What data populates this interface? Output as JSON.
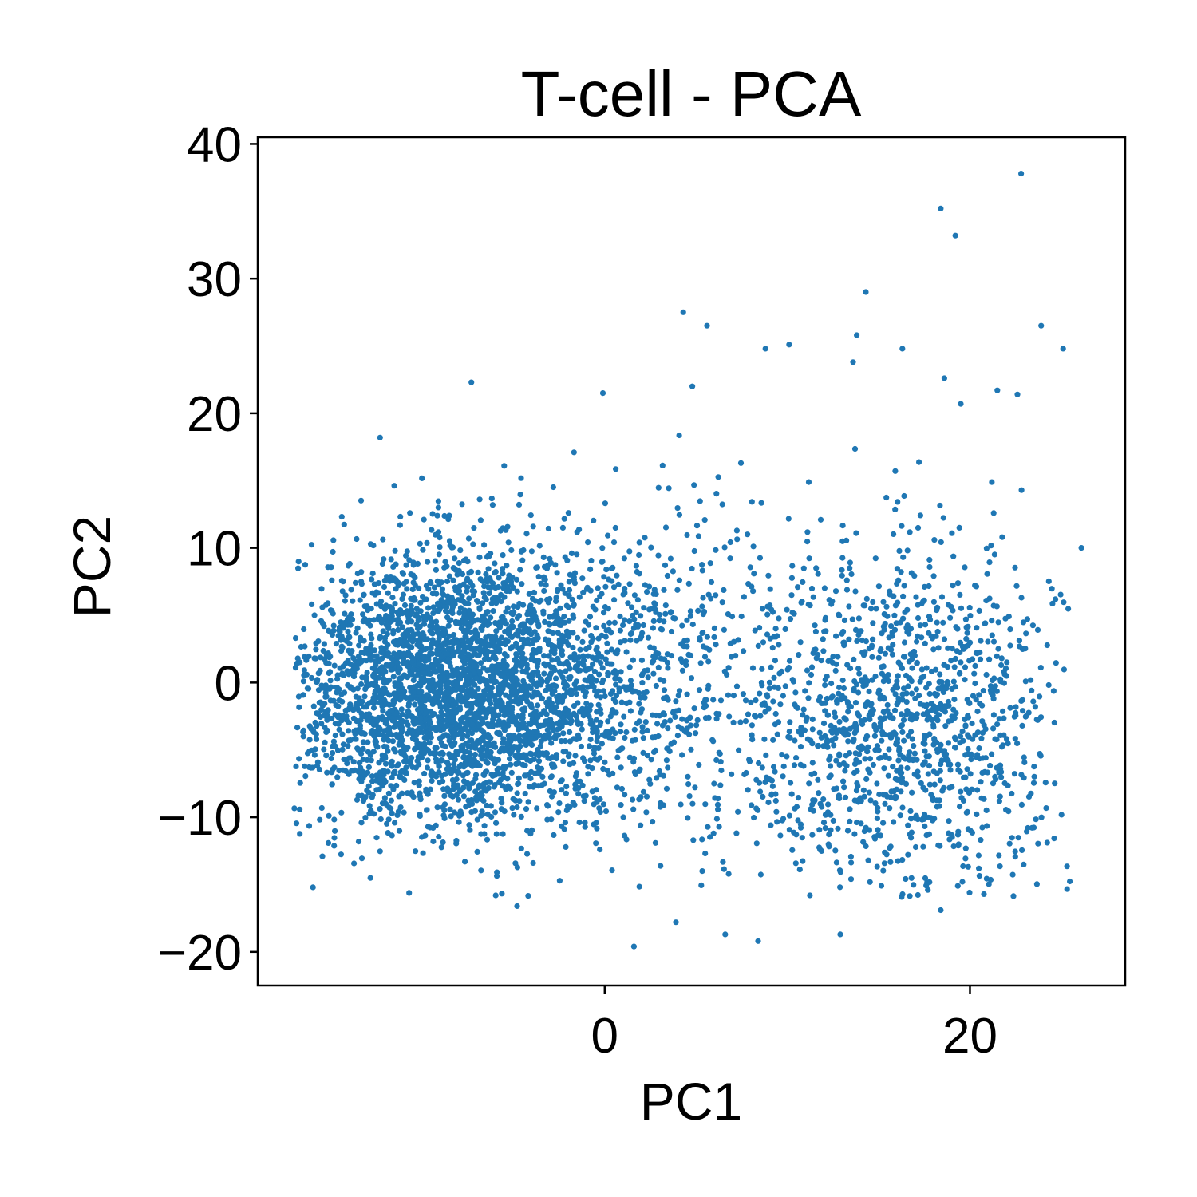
{
  "chart_data": {
    "type": "scatter",
    "title": "T-cell - PCA",
    "xlabel": "PC1",
    "ylabel": "PC2",
    "xlim": [
      -19,
      28.5
    ],
    "ylim": [
      -22.5,
      40.5
    ],
    "xticks": [
      {
        "value": 0,
        "label": "0"
      },
      {
        "value": 20,
        "label": "20"
      }
    ],
    "yticks": [
      {
        "value": 40,
        "label": "40"
      },
      {
        "value": 30,
        "label": "30"
      },
      {
        "value": 20,
        "label": "20"
      },
      {
        "value": 10,
        "label": "10"
      },
      {
        "value": 0,
        "label": "0"
      },
      {
        "value": -10,
        "label": "−10"
      },
      {
        "value": -20,
        "label": "−20"
      }
    ],
    "grid": false,
    "legend": "none",
    "color": "#1f77b4",
    "series": [
      {
        "n_points": 5000,
        "clusters": [
          {
            "cx": -8.5,
            "cy": -0.5,
            "sx": 4.5,
            "sy": 5.0,
            "weight": 0.62
          },
          {
            "cx": 2.0,
            "cy": 0.5,
            "sx": 5.0,
            "sy": 6.0,
            "weight": 0.14
          },
          {
            "cx": 16.5,
            "cy": -3.0,
            "sx": 4.2,
            "sy": 6.5,
            "weight": 0.24
          }
        ],
        "outliers": [
          {
            "x": 22.8,
            "y": 37.8
          },
          {
            "x": 18.4,
            "y": 35.2
          },
          {
            "x": 19.2,
            "y": 33.2
          },
          {
            "x": 14.3,
            "y": 29.0
          },
          {
            "x": 4.3,
            "y": 27.5
          },
          {
            "x": 5.6,
            "y": 26.5
          },
          {
            "x": 23.9,
            "y": 26.5
          },
          {
            "x": 13.8,
            "y": 25.8
          },
          {
            "x": 10.1,
            "y": 25.1
          },
          {
            "x": 8.8,
            "y": 24.8
          },
          {
            "x": 16.3,
            "y": 24.8
          },
          {
            "x": 25.1,
            "y": 24.8
          },
          {
            "x": 13.6,
            "y": 23.8
          },
          {
            "x": 18.6,
            "y": 22.6
          },
          {
            "x": -7.3,
            "y": 22.3
          },
          {
            "x": 4.8,
            "y": 22.0
          },
          {
            "x": 21.5,
            "y": 21.7
          },
          {
            "x": -0.1,
            "y": 21.5
          },
          {
            "x": 22.6,
            "y": 21.4
          },
          {
            "x": 19.5,
            "y": 20.7
          },
          {
            "x": -12.3,
            "y": 18.2
          },
          {
            "x": 26.1,
            "y": 10.0
          },
          {
            "x": -16.5,
            "y": -4.0
          },
          {
            "x": 1.6,
            "y": -19.6
          },
          {
            "x": 8.4,
            "y": -19.2
          },
          {
            "x": 12.9,
            "y": -18.7
          },
          {
            "x": 6.6,
            "y": -18.7
          },
          {
            "x": 3.9,
            "y": -17.8
          },
          {
            "x": 18.4,
            "y": -16.9
          },
          {
            "x": -4.8,
            "y": -16.6
          }
        ]
      }
    ]
  }
}
